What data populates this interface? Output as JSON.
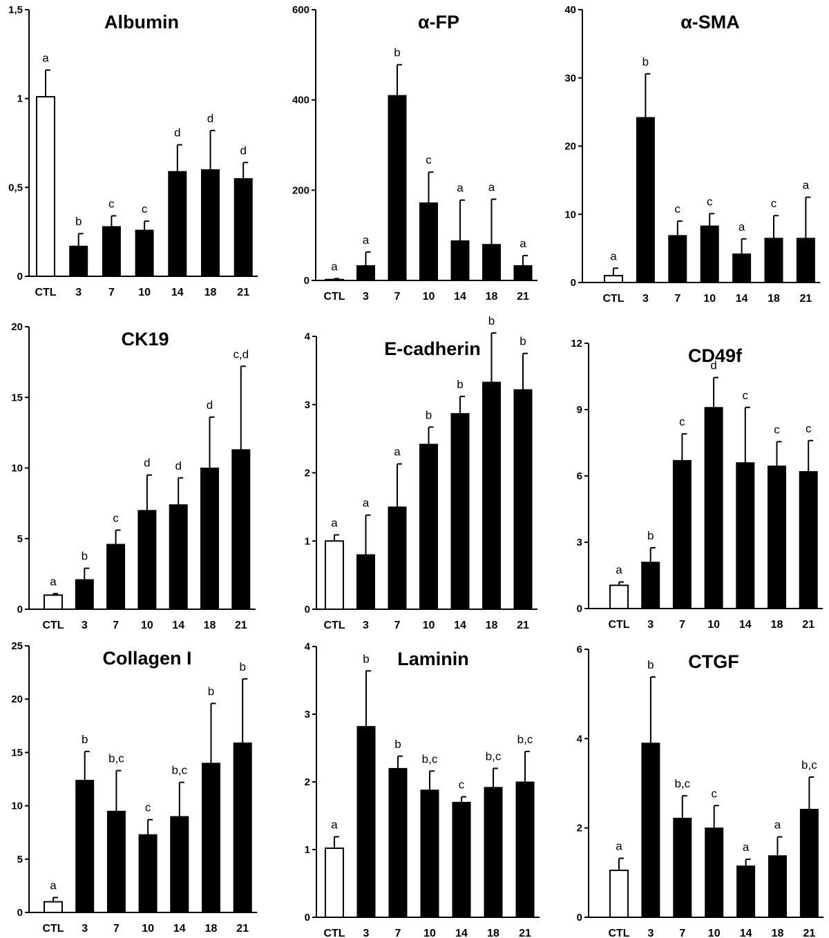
{
  "chart_data": [
    {
      "type": "bar",
      "title": "Albumin",
      "categories": [
        "CTL",
        "3",
        "7",
        "10",
        "14",
        "18",
        "21"
      ],
      "values": [
        1.01,
        0.17,
        0.28,
        0.26,
        0.59,
        0.6,
        0.55
      ],
      "errors": [
        0.15,
        0.07,
        0.06,
        0.05,
        0.15,
        0.22,
        0.09
      ],
      "labels": [
        "a",
        "b",
        "c",
        "c",
        "d",
        "d",
        "d"
      ],
      "ylim": [
        0,
        1.5
      ],
      "yticks": [
        "0",
        "0,5",
        "1",
        "1,5"
      ],
      "ytick_values": [
        0,
        0.5,
        1,
        1.5
      ]
    },
    {
      "type": "bar",
      "title": "α-FP",
      "categories": [
        "CTL",
        "3",
        "7",
        "10",
        "14",
        "18",
        "21"
      ],
      "values": [
        2,
        33,
        410,
        172,
        88,
        80,
        33
      ],
      "errors": [
        2,
        30,
        68,
        68,
        90,
        100,
        22
      ],
      "labels": [
        "a",
        "a",
        "b",
        "c",
        "a",
        "a",
        "a"
      ],
      "ylim": [
        0,
        600
      ],
      "yticks": [
        "0",
        "200",
        "400",
        "600"
      ],
      "ytick_values": [
        0,
        200,
        400,
        600
      ]
    },
    {
      "type": "bar",
      "title": "α-SMA",
      "categories": [
        "CTL",
        "3",
        "7",
        "10",
        "14",
        "18",
        "21"
      ],
      "values": [
        1.0,
        24.2,
        6.9,
        8.3,
        4.2,
        6.5,
        6.5
      ],
      "errors": [
        1.1,
        6.4,
        2.1,
        1.8,
        2.2,
        3.3,
        6.0
      ],
      "labels": [
        "a",
        "b",
        "c",
        "c",
        "a",
        "c",
        "a"
      ],
      "ylim": [
        0,
        40
      ],
      "yticks": [
        "0",
        "10",
        "20",
        "30",
        "40"
      ],
      "ytick_values": [
        0,
        10,
        20,
        30,
        40
      ]
    },
    {
      "type": "bar",
      "title": "CK19",
      "categories": [
        "CTL",
        "3",
        "7",
        "10",
        "14",
        "18",
        "21"
      ],
      "values": [
        1.0,
        2.1,
        4.6,
        7.0,
        7.4,
        10.0,
        11.3
      ],
      "errors": [
        0.1,
        0.8,
        1.0,
        2.5,
        1.9,
        3.6,
        5.9
      ],
      "labels": [
        "a",
        "b",
        "c",
        "d",
        "d",
        "d",
        "c,d"
      ],
      "ylim": [
        0,
        20
      ],
      "yticks": [
        "0",
        "5",
        "10",
        "15",
        "20"
      ],
      "ytick_values": [
        0,
        5,
        10,
        15,
        20
      ]
    },
    {
      "type": "bar",
      "title": "E-cadherin",
      "categories": [
        "CTL",
        "3",
        "7",
        "10",
        "14",
        "18",
        "21"
      ],
      "values": [
        1.0,
        0.8,
        1.5,
        2.42,
        2.87,
        3.33,
        3.22
      ],
      "errors": [
        0.09,
        0.58,
        0.63,
        0.25,
        0.25,
        0.72,
        0.53
      ],
      "labels": [
        "a",
        "a",
        "a",
        "b",
        "b",
        "b",
        "b"
      ],
      "ylim": [
        0,
        4
      ],
      "yticks": [
        "0",
        "1",
        "2",
        "3",
        "4"
      ],
      "ytick_values": [
        0,
        1,
        2,
        3,
        4
      ]
    },
    {
      "type": "bar",
      "title": "CD49f",
      "categories": [
        "CTL",
        "3",
        "7",
        "10",
        "14",
        "18",
        "21"
      ],
      "values": [
        1.05,
        2.1,
        6.7,
        9.1,
        6.6,
        6.45,
        6.2
      ],
      "errors": [
        0.15,
        0.65,
        1.2,
        1.35,
        2.5,
        1.1,
        1.4
      ],
      "labels": [
        "a",
        "b",
        "c",
        "d",
        "c",
        "c",
        "c"
      ],
      "ylim": [
        0,
        12
      ],
      "yticks": [
        "0",
        "3",
        "6",
        "9",
        "12"
      ],
      "ytick_values": [
        0,
        3,
        6,
        9,
        12
      ]
    },
    {
      "type": "bar",
      "title": "Collagen I",
      "categories": [
        "CTL",
        "3",
        "7",
        "10",
        "14",
        "18",
        "21"
      ],
      "values": [
        1.0,
        12.4,
        9.5,
        7.3,
        9.0,
        14.0,
        15.9
      ],
      "errors": [
        0.4,
        2.7,
        3.8,
        1.4,
        3.2,
        5.6,
        6.0
      ],
      "labels": [
        "a",
        "b",
        "b,c",
        "c",
        "b,c",
        "b",
        "b"
      ],
      "ylim": [
        0,
        25
      ],
      "yticks": [
        "0",
        "5",
        "10",
        "15",
        "20",
        "25"
      ],
      "ytick_values": [
        0,
        5,
        10,
        15,
        20,
        25
      ]
    },
    {
      "type": "bar",
      "title": "Laminin",
      "categories": [
        "CTL",
        "3",
        "7",
        "10",
        "14",
        "18",
        "21"
      ],
      "values": [
        1.02,
        2.82,
        2.2,
        1.88,
        1.7,
        1.92,
        2.0
      ],
      "errors": [
        0.17,
        0.82,
        0.18,
        0.28,
        0.08,
        0.28,
        0.45
      ],
      "labels": [
        "a",
        "b",
        "b",
        "b,c",
        "c",
        "b,c",
        "b,c"
      ],
      "ylim": [
        0,
        4
      ],
      "yticks": [
        "0",
        "1",
        "2",
        "3",
        "4"
      ],
      "ytick_values": [
        0,
        1,
        2,
        3,
        4
      ]
    },
    {
      "type": "bar",
      "title": "CTGF",
      "categories": [
        "CTL",
        "3",
        "7",
        "10",
        "14",
        "18",
        "21"
      ],
      "values": [
        1.05,
        3.9,
        2.22,
        2.0,
        1.15,
        1.38,
        2.42
      ],
      "errors": [
        0.27,
        1.48,
        0.5,
        0.5,
        0.15,
        0.42,
        0.72
      ],
      "labels": [
        "a",
        "b",
        "b,c",
        "c",
        "a",
        "a",
        "b,c"
      ],
      "ylim": [
        0,
        6
      ],
      "yticks": [
        "0",
        "2",
        "4",
        "6"
      ],
      "ytick_values": [
        0,
        2,
        4,
        6
      ]
    }
  ]
}
